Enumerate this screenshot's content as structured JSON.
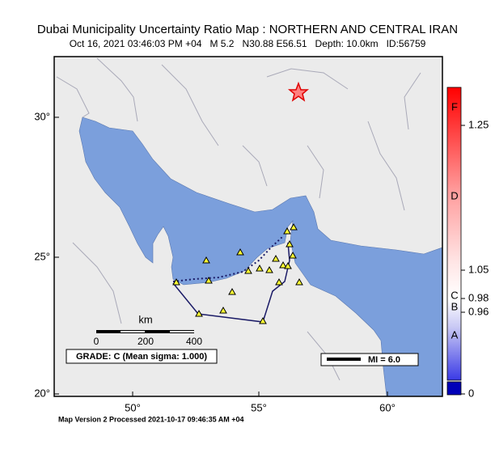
{
  "header": {
    "title": "Dubai Municipality Uncertainty Ratio Map : NORTHERN AND CENTRAL IRAN",
    "subtitle": "Oct 16, 2021 03:46:03 PM +04   M 5.2   N30.88 E56.51   Depth: 10.0km   ID:56759"
  },
  "map": {
    "lat_labels": [
      "30°",
      "25°",
      "20°"
    ],
    "lon_labels": [
      "50°",
      "55°",
      "60°"
    ]
  },
  "colorbar": {
    "grades": [
      "F",
      "D",
      "C",
      "B",
      "A"
    ],
    "values": [
      "1.25",
      "1.05",
      "0.98",
      "0.96",
      "0"
    ]
  },
  "scale_bar": {
    "unit": "km",
    "labels": [
      "0",
      "200",
      "400"
    ]
  },
  "grade_box": "GRADE: C (Mean sigma: 1.000)",
  "legend": "MI = 6.0",
  "footer": "Map Version 2 Processed 2021-10-17 09:46:35 AM +04"
}
